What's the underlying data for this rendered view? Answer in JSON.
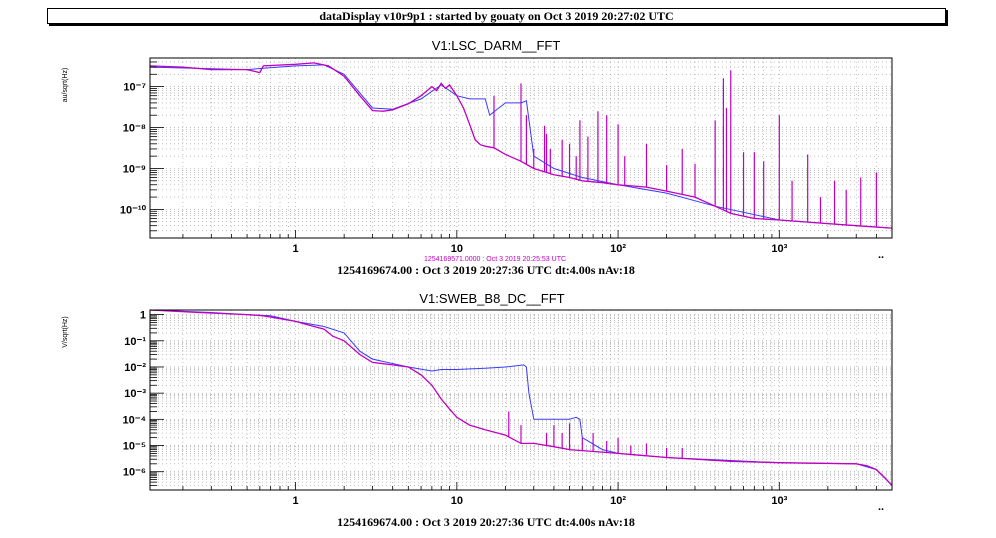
{
  "window_title": "dataDisplay v10r9p1 : started by gouaty on Oct  3 2019 20:27:02 UTC",
  "colors": {
    "magenta": "#c000c0",
    "blue": "#3a3aff",
    "grid": "#9a9a9a"
  },
  "chart_data": [
    {
      "type": "line",
      "title": "V1:LSC_DARM__FFT",
      "ylabel": "au/sqrt(Hz)",
      "xscale": "log",
      "yscale": "log",
      "xlim": [
        0.125,
        5000
      ],
      "ylim": [
        2e-11,
        5e-07
      ],
      "grid": true,
      "x_ticks": [
        {
          "v": 1,
          "label": "1"
        },
        {
          "v": 10,
          "label": "10"
        },
        {
          "v": 100,
          "label": "10²"
        },
        {
          "v": 1000,
          "label": "10³"
        }
      ],
      "y_ticks": [
        {
          "v": 1e-07,
          "label": "10⁻⁷"
        },
        {
          "v": 1e-08,
          "label": "10⁻⁸"
        },
        {
          "v": 1e-09,
          "label": "10⁻⁹"
        },
        {
          "v": 1e-10,
          "label": "10⁻¹⁰"
        }
      ],
      "reference_timestamp": "1254169571.0000 : Oct  3 2019 20:25:53 UTC",
      "info": "1254169674.00 : Oct  3 2019 20:27:36 UTC dt:4.00s nAv:18",
      "series": [
        {
          "color": "magenta",
          "x": [
            0.125,
            0.2,
            0.3,
            0.5,
            0.6,
            0.63,
            1.0,
            1.3,
            1.6,
            2.0,
            2.5,
            3.0,
            3.5,
            4.0,
            5.0,
            6.0,
            7.0,
            7.5,
            8.0,
            8.5,
            9.0,
            10.0,
            11.0,
            12.0,
            13.0,
            14.0,
            15.0,
            17.0,
            20.0,
            25.0,
            30.0,
            40.0,
            50.0,
            60.0,
            80.0,
            100.0,
            150.0,
            200.0,
            300.0,
            400.0,
            500.0,
            700.0,
            1000.0,
            2000.0,
            3000.0,
            5000.0
          ],
          "y": [
            3.2e-07,
            3e-07,
            2.6e-07,
            2.6e-07,
            2.2e-07,
            3.2e-07,
            3.5e-07,
            3.8e-07,
            3.2e-07,
            1.8e-07,
            6e-08,
            2.6e-08,
            2.5e-08,
            2.7e-08,
            3.8e-08,
            6e-08,
            1e-07,
            8e-08,
            1.2e-07,
            9e-08,
            1.1e-07,
            6e-08,
            3e-08,
            1.2e-08,
            5e-09,
            3.8e-09,
            3.5e-09,
            3.2e-09,
            2.2e-09,
            1.5e-09,
            1e-09,
            7e-10,
            6e-10,
            5e-10,
            4.5e-10,
            4e-10,
            3.5e-10,
            2.8e-10,
            2e-10,
            1.2e-10,
            8e-11,
            6e-11,
            5.5e-11,
            4.5e-11,
            4e-11,
            3.5e-11
          ]
        },
        {
          "color": "blue",
          "x": [
            0.125,
            0.5,
            0.63,
            1.0,
            1.5,
            2.0,
            3.0,
            4.0,
            6.0,
            8.0,
            10.0,
            12.0,
            15.0,
            16.0,
            20.0,
            25.0,
            27.0,
            30.0,
            40.0,
            60.0,
            100.0,
            200.0,
            400.0,
            1000.0,
            2000.0,
            5000.0
          ],
          "y": [
            3e-07,
            2.6e-07,
            2.8e-07,
            3.2e-07,
            3.4e-07,
            2e-07,
            3e-08,
            2.8e-08,
            5e-08,
            1.1e-07,
            6e-08,
            5e-08,
            5e-08,
            2e-08,
            4e-08,
            4e-08,
            4.5e-08,
            2e-09,
            1e-09,
            6e-10,
            4e-10,
            2.5e-10,
            1.2e-10,
            5.5e-11,
            4.5e-11,
            3.5e-11
          ]
        }
      ],
      "lines": [
        {
          "x": 17,
          "top": 6e-08
        },
        {
          "x": 25,
          "top": 1.2e-07
        },
        {
          "x": 27,
          "top": 2e-08
        },
        {
          "x": 30,
          "top": 3e-09
        },
        {
          "x": 35,
          "top": 1.1e-08
        },
        {
          "x": 36,
          "top": 7e-09
        },
        {
          "x": 38,
          "top": 3e-09
        },
        {
          "x": 45,
          "top": 5e-09
        },
        {
          "x": 50,
          "top": 4e-09
        },
        {
          "x": 55,
          "top": 2e-09
        },
        {
          "x": 58,
          "top": 1.5e-08
        },
        {
          "x": 65,
          "top": 6e-09
        },
        {
          "x": 75,
          "top": 2.5e-08
        },
        {
          "x": 85,
          "top": 2e-08
        },
        {
          "x": 100,
          "top": 1.2e-08
        },
        {
          "x": 110,
          "top": 2e-09
        },
        {
          "x": 150,
          "top": 4e-09
        },
        {
          "x": 200,
          "top": 1.2e-09
        },
        {
          "x": 250,
          "top": 3e-09
        },
        {
          "x": 300,
          "top": 1.3e-09
        },
        {
          "x": 400,
          "top": 1.5e-08
        },
        {
          "x": 450,
          "top": 1.6e-07
        },
        {
          "x": 470,
          "top": 3e-08
        },
        {
          "x": 500,
          "top": 2.5e-07
        },
        {
          "x": 600,
          "top": 2.5e-09
        },
        {
          "x": 700,
          "top": 2.5e-09
        },
        {
          "x": 800,
          "top": 1.5e-09
        },
        {
          "x": 1000,
          "top": 2e-08
        },
        {
          "x": 1200,
          "top": 5e-10
        },
        {
          "x": 1500,
          "top": 2.2e-09
        },
        {
          "x": 1800,
          "top": 2e-10
        },
        {
          "x": 2200,
          "top": 5e-10
        },
        {
          "x": 2600,
          "top": 3e-10
        },
        {
          "x": 3200,
          "top": 6e-10
        },
        {
          "x": 4000,
          "top": 8e-10
        }
      ]
    },
    {
      "type": "line",
      "title": "V1:SWEB_B8_DC__FFT",
      "ylabel": "V/sqrt(Hz)",
      "xscale": "log",
      "yscale": "log",
      "xlim": [
        0.125,
        5000
      ],
      "ylim": [
        2e-07,
        1.5
      ],
      "grid": true,
      "x_ticks": [
        {
          "v": 1,
          "label": "1"
        },
        {
          "v": 10,
          "label": "10"
        },
        {
          "v": 100,
          "label": "10²"
        },
        {
          "v": 1000,
          "label": "10³"
        }
      ],
      "y_ticks": [
        {
          "v": 1,
          "label": "1"
        },
        {
          "v": 0.1,
          "label": "10⁻¹"
        },
        {
          "v": 0.01,
          "label": "10⁻²"
        },
        {
          "v": 0.001,
          "label": "10⁻³"
        },
        {
          "v": 0.0001,
          "label": "10⁻⁴"
        },
        {
          "v": 1e-05,
          "label": "10⁻⁵"
        },
        {
          "v": 1e-06,
          "label": "10⁻⁶"
        }
      ],
      "info": "1254169674.00 : Oct  3 2019 20:27:36 UTC dt:4.00s nAv:18",
      "series": [
        {
          "color": "magenta",
          "x": [
            0.125,
            0.25,
            0.5,
            0.63,
            1.0,
            1.2,
            1.5,
            1.7,
            2.0,
            2.5,
            3.0,
            4.0,
            5.0,
            6.0,
            7.0,
            8.0,
            9.0,
            10.0,
            12.0,
            15.0,
            20.0,
            25.0,
            30.0,
            40.0,
            50.0,
            100.0,
            200.0,
            500.0,
            1000.0,
            3000.0,
            3500.0,
            4000.0,
            4500.0,
            5000.0
          ],
          "y": [
            1.5,
            1.2,
            1.0,
            0.9,
            0.55,
            0.4,
            0.28,
            0.15,
            0.1,
            0.03,
            0.015,
            0.012,
            0.01,
            0.005,
            0.002,
            0.0006,
            0.00025,
            0.00012,
            6e-05,
            4e-05,
            2.5e-05,
            1.2e-05,
            1.2e-05,
            9e-06,
            7e-06,
            5e-06,
            3.5e-06,
            2.5e-06,
            2.2e-06,
            2e-06,
            1.7e-06,
            1.2e-06,
            6e-07,
            3e-07
          ]
        },
        {
          "color": "blue",
          "x": [
            0.125,
            0.3,
            0.5,
            0.7,
            1.0,
            1.5,
            2.0,
            2.5,
            3.0,
            5.0,
            7.0,
            8.0,
            10.0,
            15.0,
            20.0,
            26.0,
            27.0,
            28.0,
            30.0,
            40.0,
            50.0,
            55.0,
            58.0,
            60.0,
            80.0,
            100.0,
            200.0,
            1000.0,
            3000.0,
            4000.0,
            5000.0
          ],
          "y": [
            1.5,
            1.2,
            1.0,
            0.9,
            0.55,
            0.35,
            0.2,
            0.04,
            0.02,
            0.01,
            0.007,
            0.008,
            0.008,
            0.009,
            0.01,
            0.012,
            0.01,
            0.001,
            0.0001,
            0.0001,
            0.0001,
            0.00012,
            0.0001,
            2e-05,
            7e-06,
            5e-06,
            3.5e-06,
            2.2e-06,
            2e-06,
            1.2e-06,
            3e-07
          ]
        }
      ],
      "lines": [
        {
          "x": 21,
          "top": 0.0002
        },
        {
          "x": 25,
          "top": 6e-05
        },
        {
          "x": 36,
          "top": 3e-05
        },
        {
          "x": 40,
          "top": 6e-05
        },
        {
          "x": 45,
          "top": 3e-05
        },
        {
          "x": 50,
          "top": 7e-05
        },
        {
          "x": 60,
          "top": 2e-05
        },
        {
          "x": 70,
          "top": 3e-05
        },
        {
          "x": 85,
          "top": 1.5e-05
        },
        {
          "x": 100,
          "top": 2e-05
        },
        {
          "x": 120,
          "top": 1e-05
        },
        {
          "x": 150,
          "top": 1.2e-05
        },
        {
          "x": 200,
          "top": 8e-06
        },
        {
          "x": 250,
          "top": 8e-06
        }
      ]
    }
  ]
}
